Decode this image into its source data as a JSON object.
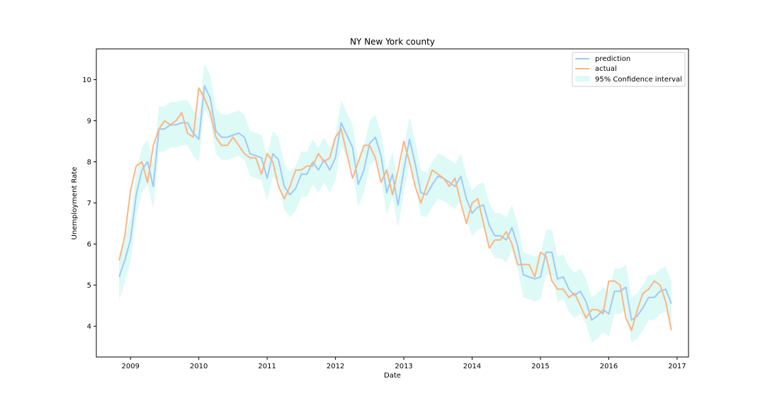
{
  "chart_data": {
    "type": "line",
    "title": "NY New York county",
    "xlabel": "Date",
    "ylabel": "Unemployment Rate",
    "xlim": [
      "2008-07-01",
      "2017-03-01"
    ],
    "ylim": [
      3.25,
      10.75
    ],
    "x_ticks": [
      "2009",
      "2010",
      "2011",
      "2012",
      "2013",
      "2014",
      "2015",
      "2016",
      "2017"
    ],
    "y_ticks": [
      4,
      5,
      6,
      7,
      8,
      9,
      10
    ],
    "legend_position": "top-right",
    "grid": false,
    "colors": {
      "prediction": "#a1c9f4",
      "actual": "#ffb482",
      "confidence": "#ddfaf6",
      "axes": "#000000"
    },
    "series": [
      {
        "name": "prediction",
        "points": [
          [
            "2008-11",
            5.2
          ],
          [
            "2008-12",
            5.6
          ],
          [
            "2009-01",
            6.1
          ],
          [
            "2009-02",
            7.2
          ],
          [
            "2009-03",
            7.8
          ],
          [
            "2009-04",
            8.0
          ],
          [
            "2009-05",
            7.4
          ],
          [
            "2009-06",
            8.8
          ],
          [
            "2009-07",
            8.8
          ],
          [
            "2009-08",
            8.9
          ],
          [
            "2009-09",
            8.9
          ],
          [
            "2009-10",
            8.95
          ],
          [
            "2009-11",
            8.95
          ],
          [
            "2009-12",
            8.7
          ],
          [
            "2010-01",
            8.55
          ],
          [
            "2010-02",
            9.85
          ],
          [
            "2010-03",
            9.55
          ],
          [
            "2010-04",
            8.75
          ],
          [
            "2010-05",
            8.6
          ],
          [
            "2010-06",
            8.6
          ],
          [
            "2010-07",
            8.65
          ],
          [
            "2010-08",
            8.7
          ],
          [
            "2010-09",
            8.6
          ],
          [
            "2010-10",
            8.2
          ],
          [
            "2010-11",
            8.15
          ],
          [
            "2010-12",
            8.1
          ],
          [
            "2011-01",
            7.6
          ],
          [
            "2011-02",
            8.2
          ],
          [
            "2011-03",
            8.05
          ],
          [
            "2011-04",
            7.4
          ],
          [
            "2011-05",
            7.2
          ],
          [
            "2011-06",
            7.35
          ],
          [
            "2011-07",
            7.7
          ],
          [
            "2011-08",
            7.7
          ],
          [
            "2011-09",
            8.0
          ],
          [
            "2011-10",
            7.8
          ],
          [
            "2011-11",
            8.05
          ],
          [
            "2011-12",
            7.8
          ],
          [
            "2012-01",
            8.1
          ],
          [
            "2012-02",
            8.95
          ],
          [
            "2012-03",
            8.65
          ],
          [
            "2012-04",
            8.35
          ],
          [
            "2012-05",
            7.45
          ],
          [
            "2012-06",
            7.8
          ],
          [
            "2012-07",
            8.45
          ],
          [
            "2012-08",
            8.6
          ],
          [
            "2012-09",
            8.15
          ],
          [
            "2012-10",
            7.25
          ],
          [
            "2012-11",
            7.7
          ],
          [
            "2012-12",
            6.95
          ],
          [
            "2013-01",
            7.8
          ],
          [
            "2013-02",
            8.55
          ],
          [
            "2013-03",
            7.95
          ],
          [
            "2013-04",
            7.25
          ],
          [
            "2013-05",
            7.2
          ],
          [
            "2013-06",
            7.45
          ],
          [
            "2013-07",
            7.65
          ],
          [
            "2013-08",
            7.6
          ],
          [
            "2013-09",
            7.5
          ],
          [
            "2013-10",
            7.4
          ],
          [
            "2013-11",
            7.65
          ],
          [
            "2013-12",
            7.1
          ],
          [
            "2014-01",
            6.75
          ],
          [
            "2014-02",
            6.9
          ],
          [
            "2014-03",
            6.95
          ],
          [
            "2014-04",
            6.45
          ],
          [
            "2014-05",
            6.2
          ],
          [
            "2014-06",
            6.2
          ],
          [
            "2014-07",
            6.1
          ],
          [
            "2014-08",
            6.4
          ],
          [
            "2014-09",
            5.95
          ],
          [
            "2014-10",
            5.25
          ],
          [
            "2014-11",
            5.2
          ],
          [
            "2014-12",
            5.15
          ],
          [
            "2015-01",
            5.2
          ],
          [
            "2015-02",
            5.8
          ],
          [
            "2015-03",
            5.8
          ],
          [
            "2015-04",
            5.15
          ],
          [
            "2015-05",
            5.2
          ],
          [
            "2015-06",
            4.9
          ],
          [
            "2015-07",
            4.75
          ],
          [
            "2015-08",
            4.85
          ],
          [
            "2015-09",
            4.6
          ],
          [
            "2015-10",
            4.15
          ],
          [
            "2015-11",
            4.25
          ],
          [
            "2015-12",
            4.4
          ],
          [
            "2016-01",
            4.3
          ],
          [
            "2016-02",
            4.85
          ],
          [
            "2016-03",
            4.85
          ],
          [
            "2016-04",
            4.95
          ],
          [
            "2016-05",
            4.15
          ],
          [
            "2016-06",
            4.25
          ],
          [
            "2016-07",
            4.45
          ],
          [
            "2016-08",
            4.7
          ],
          [
            "2016-09",
            4.7
          ],
          [
            "2016-10",
            4.85
          ],
          [
            "2016-11",
            4.9
          ],
          [
            "2016-12",
            4.55
          ]
        ]
      },
      {
        "name": "actual",
        "points": [
          [
            "2008-11",
            5.6
          ],
          [
            "2008-12",
            6.2
          ],
          [
            "2009-01",
            7.3
          ],
          [
            "2009-02",
            7.9
          ],
          [
            "2009-03",
            8.0
          ],
          [
            "2009-04",
            7.5
          ],
          [
            "2009-05",
            8.4
          ],
          [
            "2009-06",
            8.8
          ],
          [
            "2009-07",
            9.0
          ],
          [
            "2009-08",
            8.9
          ],
          [
            "2009-09",
            9.0
          ],
          [
            "2009-10",
            9.2
          ],
          [
            "2009-11",
            8.7
          ],
          [
            "2009-12",
            8.6
          ],
          [
            "2010-01",
            9.8
          ],
          [
            "2010-02",
            9.55
          ],
          [
            "2010-03",
            9.2
          ],
          [
            "2010-04",
            8.6
          ],
          [
            "2010-05",
            8.4
          ],
          [
            "2010-06",
            8.4
          ],
          [
            "2010-07",
            8.6
          ],
          [
            "2010-08",
            8.4
          ],
          [
            "2010-09",
            8.2
          ],
          [
            "2010-10",
            8.1
          ],
          [
            "2010-11",
            8.1
          ],
          [
            "2010-12",
            7.7
          ],
          [
            "2011-01",
            8.2
          ],
          [
            "2011-02",
            8.0
          ],
          [
            "2011-03",
            7.4
          ],
          [
            "2011-04",
            7.1
          ],
          [
            "2011-05",
            7.4
          ],
          [
            "2011-06",
            7.8
          ],
          [
            "2011-07",
            7.8
          ],
          [
            "2011-08",
            7.9
          ],
          [
            "2011-09",
            7.9
          ],
          [
            "2011-10",
            8.2
          ],
          [
            "2011-11",
            8.0
          ],
          [
            "2011-12",
            8.1
          ],
          [
            "2012-01",
            8.6
          ],
          [
            "2012-02",
            8.8
          ],
          [
            "2012-03",
            8.2
          ],
          [
            "2012-04",
            7.6
          ],
          [
            "2012-05",
            8.0
          ],
          [
            "2012-06",
            8.4
          ],
          [
            "2012-07",
            8.4
          ],
          [
            "2012-08",
            8.1
          ],
          [
            "2012-09",
            7.5
          ],
          [
            "2012-10",
            7.8
          ],
          [
            "2012-11",
            7.2
          ],
          [
            "2012-12",
            7.8
          ],
          [
            "2013-01",
            8.5
          ],
          [
            "2013-02",
            8.0
          ],
          [
            "2013-03",
            7.4
          ],
          [
            "2013-04",
            7.0
          ],
          [
            "2013-05",
            7.4
          ],
          [
            "2013-06",
            7.8
          ],
          [
            "2013-07",
            7.7
          ],
          [
            "2013-08",
            7.6
          ],
          [
            "2013-09",
            7.4
          ],
          [
            "2013-10",
            7.6
          ],
          [
            "2013-11",
            7.0
          ],
          [
            "2013-12",
            6.5
          ],
          [
            "2014-01",
            7.0
          ],
          [
            "2014-02",
            7.1
          ],
          [
            "2014-03",
            6.5
          ],
          [
            "2014-04",
            5.9
          ],
          [
            "2014-05",
            6.1
          ],
          [
            "2014-06",
            6.1
          ],
          [
            "2014-07",
            6.3
          ],
          [
            "2014-08",
            6.0
          ],
          [
            "2014-09",
            5.5
          ],
          [
            "2014-10",
            5.5
          ],
          [
            "2014-11",
            5.5
          ],
          [
            "2014-12",
            5.2
          ],
          [
            "2015-01",
            5.8
          ],
          [
            "2015-02",
            5.7
          ],
          [
            "2015-03",
            5.1
          ],
          [
            "2015-04",
            4.9
          ],
          [
            "2015-05",
            4.9
          ],
          [
            "2015-06",
            4.7
          ],
          [
            "2015-07",
            4.8
          ],
          [
            "2015-08",
            4.5
          ],
          [
            "2015-09",
            4.2
          ],
          [
            "2015-10",
            4.4
          ],
          [
            "2015-11",
            4.4
          ],
          [
            "2015-12",
            4.3
          ],
          [
            "2016-01",
            5.1
          ],
          [
            "2016-02",
            5.1
          ],
          [
            "2016-03",
            5.0
          ],
          [
            "2016-04",
            4.2
          ],
          [
            "2016-05",
            3.9
          ],
          [
            "2016-06",
            4.4
          ],
          [
            "2016-07",
            4.8
          ],
          [
            "2016-08",
            4.9
          ],
          [
            "2016-09",
            5.1
          ],
          [
            "2016-10",
            5.0
          ],
          [
            "2016-11",
            4.6
          ],
          [
            "2016-12",
            3.9
          ]
        ]
      }
    ],
    "confidence_interval": {
      "name": "95% Confidence interval",
      "half_width": 0.55
    }
  }
}
